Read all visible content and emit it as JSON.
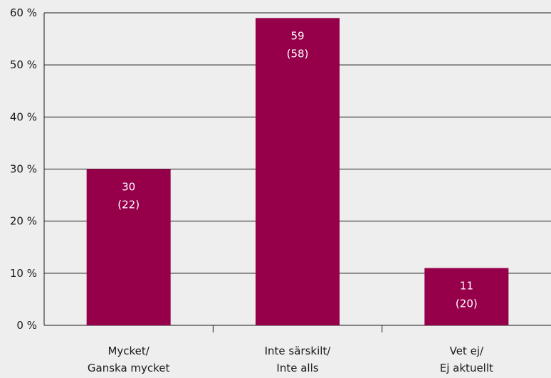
{
  "chart_data": {
    "type": "bar",
    "categories": [
      [
        "Mycket/",
        "Ganska mycket"
      ],
      [
        "Inte särskilt/",
        "Inte alls"
      ],
      [
        "Vet ej/",
        "Ej aktuellt"
      ]
    ],
    "values": [
      30,
      59,
      11
    ],
    "comparison_values": [
      "(22)",
      "(58)",
      "(20)"
    ],
    "value_labels": [
      "30",
      "59",
      "11"
    ],
    "y_ticks": [
      "0 %",
      "10 %",
      "20 %",
      "30 %",
      "40 %",
      "50 %",
      "60 %"
    ],
    "ylim": [
      0,
      60
    ],
    "y_step": 10,
    "grid": true,
    "title": "",
    "xlabel": "",
    "ylabel": "",
    "colors": {
      "bar": "#96004b",
      "background": "#efeeee",
      "grid": "#1a1a1a",
      "data_label": "#ffffff",
      "text": "#1a1a1a"
    }
  }
}
